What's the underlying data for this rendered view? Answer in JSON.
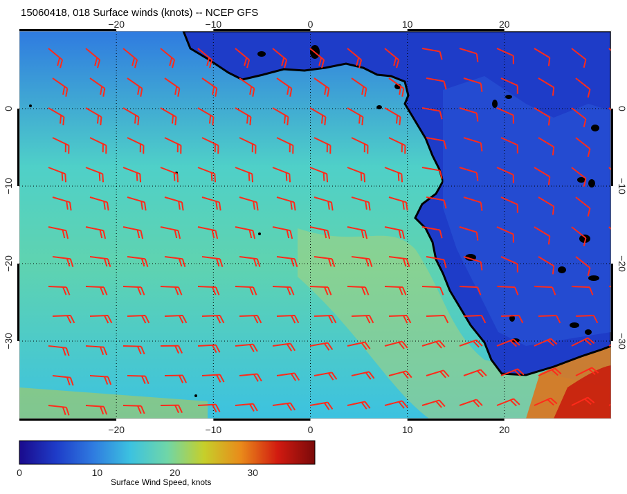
{
  "title": "15060418, 018 Surface winds (knots) -- NCEP GFS",
  "map": {
    "lon_range": [
      -30,
      31
    ],
    "lat_range": [
      -40,
      10
    ],
    "lon_ticks": [
      "−20",
      "−10",
      "0",
      "10",
      "20"
    ],
    "lat_ticks": [
      "0",
      "−10",
      "−20",
      "−30"
    ],
    "grid": true,
    "barb_color": "#ff2a1a",
    "coast_color": "#000000"
  },
  "colorbar": {
    "label": "Surface Wind Speed, knots",
    "ticks": [
      "0",
      "10",
      "20",
      "30"
    ],
    "range": [
      0,
      38
    ],
    "colors": [
      "#1a0a8c",
      "#1e3cc8",
      "#2f7be0",
      "#3cc2e0",
      "#6fd6a8",
      "#c6cf2a",
      "#e98a1a",
      "#d11a10",
      "#7a0a0a"
    ]
  }
}
